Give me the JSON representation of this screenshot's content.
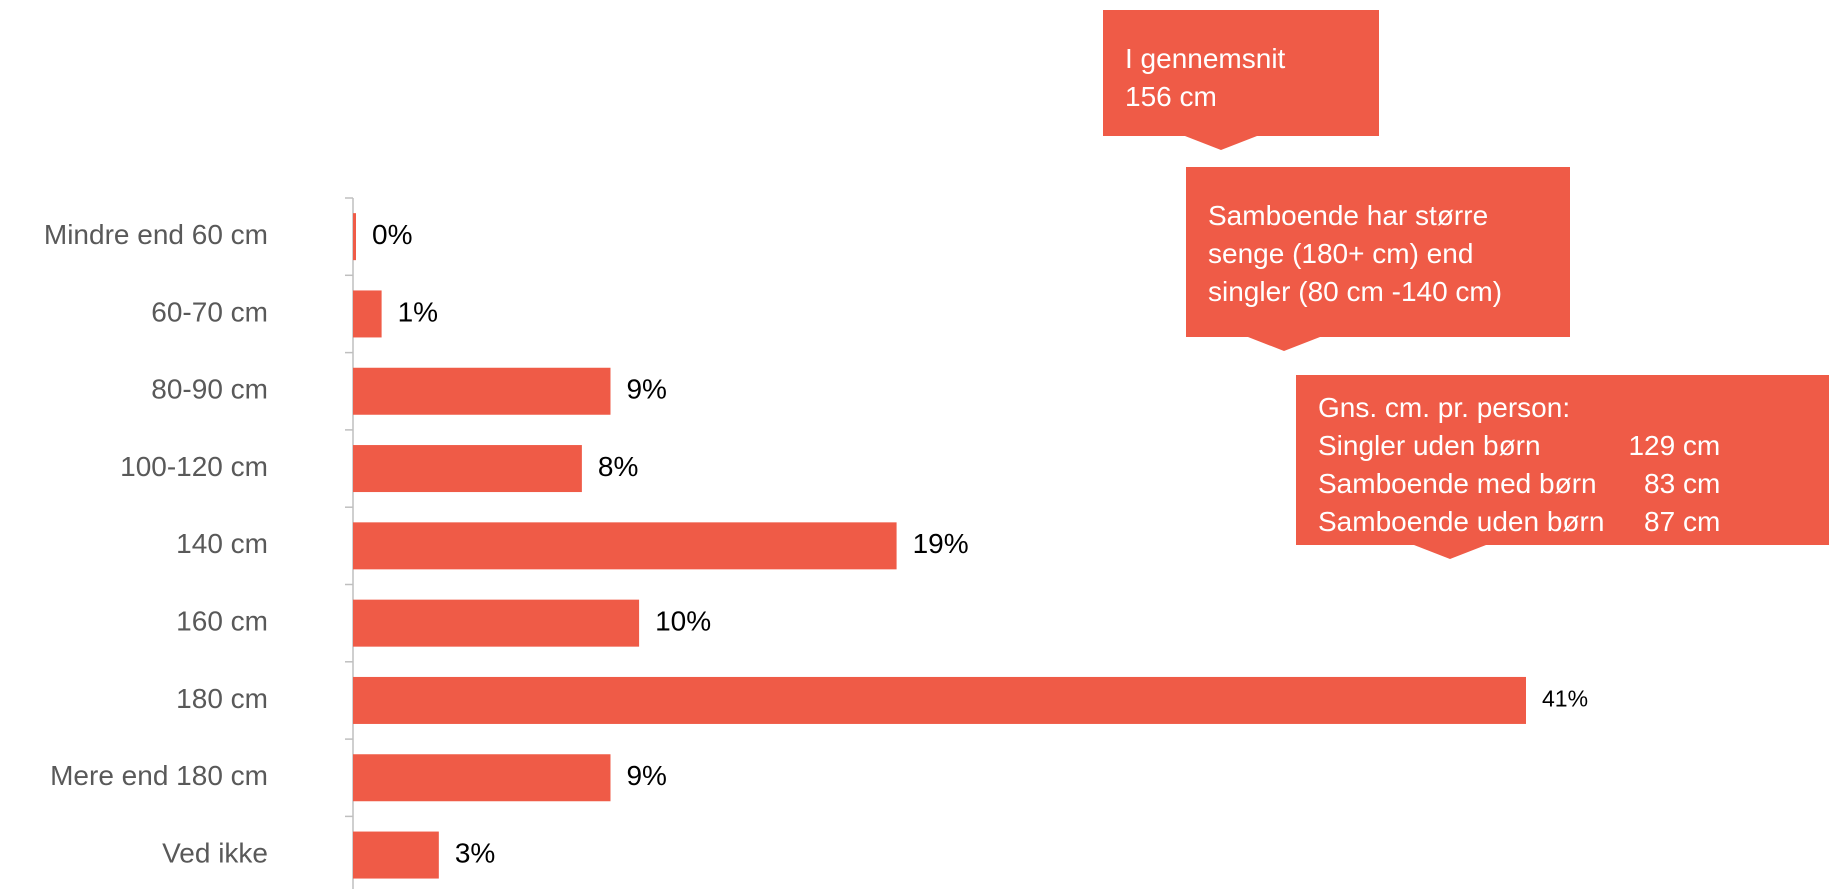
{
  "colors": {
    "bar": "#ef5b47",
    "axis": "#bfbfbf",
    "category_text": "#595959",
    "value_text": "#000000"
  },
  "chart_data": {
    "type": "bar",
    "orientation": "horizontal",
    "categories": [
      "Mindre end 60 cm",
      "60-70 cm",
      "80-90 cm",
      "100-120 cm",
      "140 cm",
      "160 cm",
      "180 cm",
      "Mere end 180 cm",
      "Ved ikke"
    ],
    "values": [
      0,
      1,
      9,
      8,
      19,
      10,
      41,
      9,
      3
    ],
    "labels": [
      "0%",
      "1%",
      "9%",
      "8%",
      "19%",
      "10%",
      "41%",
      "9%",
      "3%"
    ],
    "unit": "%",
    "xlim": [
      0,
      41
    ]
  },
  "callouts": {
    "average": {
      "lines": [
        "I gennemsnit",
        "156 cm"
      ]
    },
    "couples": {
      "lines": [
        "Samboende har større",
        "senge (180+ cm) end",
        "singler (80 cm -140 cm)"
      ]
    },
    "per_person": {
      "title": "Gns. cm. pr. person:",
      "rows": [
        {
          "label": "Singler uden børn",
          "value": "129 cm"
        },
        {
          "label": "Samboende med børn",
          "value": "83 cm"
        },
        {
          "label": "Samboende uden børn",
          "value": "87 cm"
        }
      ]
    }
  }
}
